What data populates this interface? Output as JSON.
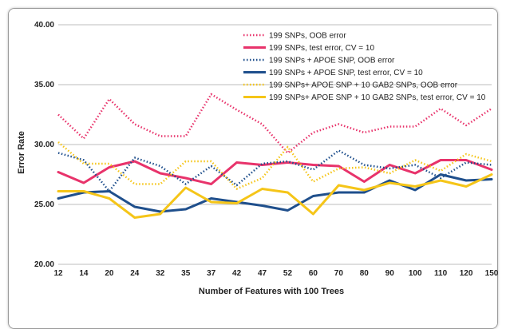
{
  "chart_data": {
    "type": "line",
    "title": "",
    "xlabel": "Number of Features with 100 Trees",
    "ylabel": "Error Rate",
    "ylim": [
      20,
      40
    ],
    "yticks": [
      "20.00",
      "25.00",
      "30.00",
      "35.00",
      "40.00"
    ],
    "grid": true,
    "legend_position": "top-right",
    "categories": [
      "12",
      "14",
      "20",
      "24",
      "32",
      "35",
      "37",
      "42",
      "47",
      "52",
      "60",
      "70",
      "80",
      "90",
      "100",
      "110",
      "120",
      "150"
    ],
    "series": [
      {
        "name": "199 SNPs, OOB error",
        "color": "#e8336b",
        "style": "dotted",
        "values": [
          32.5,
          30.5,
          33.8,
          31.7,
          30.7,
          30.7,
          34.2,
          32.9,
          31.7,
          29.3,
          31.0,
          31.7,
          31.0,
          31.5,
          31.5,
          33.0,
          31.6,
          33.0
        ]
      },
      {
        "name": "199 SNPs, test error, CV = 10",
        "color": "#e8336b",
        "style": "solid",
        "values": [
          27.7,
          26.8,
          28.1,
          28.6,
          27.6,
          27.2,
          26.7,
          28.5,
          28.3,
          28.5,
          28.3,
          28.2,
          26.9,
          28.3,
          27.6,
          28.7,
          28.7,
          27.9
        ]
      },
      {
        "name": "199 SNPs + APOE SNP, OOB error",
        "color": "#1f4f8c",
        "style": "dotted",
        "values": [
          29.3,
          28.7,
          26.1,
          28.9,
          28.2,
          26.7,
          28.2,
          26.6,
          28.4,
          28.6,
          27.9,
          29.5,
          28.3,
          28.0,
          28.3,
          27.2,
          28.5,
          28.3
        ]
      },
      {
        "name": "199 SNPs + APOE SNP, test error, CV = 10",
        "color": "#1f4f8c",
        "style": "solid",
        "values": [
          25.5,
          26.0,
          26.1,
          24.8,
          24.4,
          24.6,
          25.5,
          25.2,
          24.9,
          24.5,
          25.7,
          26.0,
          26.0,
          27.0,
          26.2,
          27.5,
          27.0,
          27.1
        ]
      },
      {
        "name": "199 SNPs+ APOE SNP + 10 GAB2 SNPs, OOB error",
        "color": "#f5c518",
        "style": "dotted",
        "values": [
          30.2,
          28.4,
          28.4,
          26.7,
          26.7,
          28.6,
          28.6,
          26.3,
          27.2,
          29.8,
          26.9,
          28.0,
          28.1,
          27.6,
          28.7,
          27.8,
          29.2,
          28.6
        ]
      },
      {
        "name": "199 SNPs+ APOE SNP + 10 GAB2 SNPs, test error, CV = 10",
        "color": "#f5c518",
        "style": "solid",
        "values": [
          26.1,
          26.1,
          25.5,
          23.9,
          24.2,
          26.4,
          25.2,
          25.1,
          26.3,
          26.0,
          24.2,
          26.6,
          26.2,
          26.8,
          26.5,
          27.0,
          26.5,
          27.5
        ]
      }
    ]
  }
}
